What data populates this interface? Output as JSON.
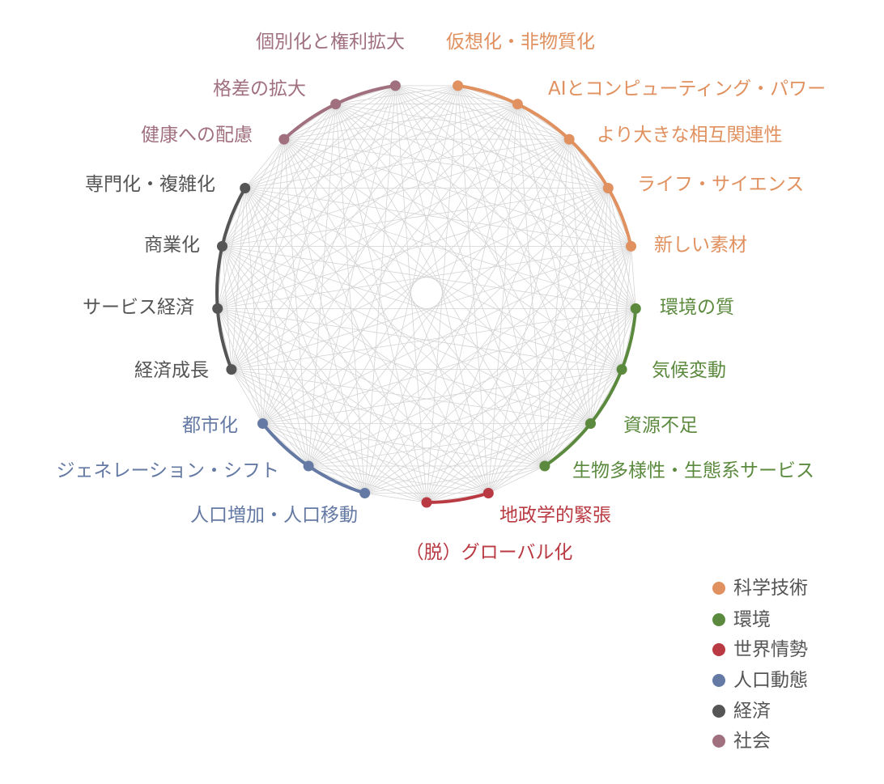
{
  "groups": [
    {
      "id": "tech",
      "label": "科学技術",
      "color": "#e0915f"
    },
    {
      "id": "env",
      "label": "環境",
      "color": "#5b8a3e"
    },
    {
      "id": "geo",
      "label": "世界情勢",
      "color": "#b93a42"
    },
    {
      "id": "pop",
      "label": "人口動態",
      "color": "#6479a3"
    },
    {
      "id": "econ",
      "label": "経済",
      "color": "#555555"
    },
    {
      "id": "soc",
      "label": "社会",
      "color": "#a0707f"
    }
  ],
  "nodes": [
    {
      "label": "仮想化・非物質化",
      "group": 0
    },
    {
      "label": "AIとコンピューティング・パワー",
      "group": 0
    },
    {
      "label": "より大きな相互関連性",
      "group": 0
    },
    {
      "label": "ライフ・サイエンス",
      "group": 0
    },
    {
      "label": "新しい素材",
      "group": 0
    },
    {
      "label": "環境の質",
      "group": 1
    },
    {
      "label": "気候変動",
      "group": 1
    },
    {
      "label": "資源不足",
      "group": 1
    },
    {
      "label": "生物多様性・生態系サービス",
      "group": 1
    },
    {
      "label": "地政学的緊張",
      "group": 2
    },
    {
      "label": "（脱）グローバル化",
      "group": 2
    },
    {
      "label": "人口増加・人口移動",
      "group": 3
    },
    {
      "label": "ジェネレーション・シフト",
      "group": 3
    },
    {
      "label": "都市化",
      "group": 3
    },
    {
      "label": "経済成長",
      "group": 4
    },
    {
      "label": "サービス経済",
      "group": 4
    },
    {
      "label": "商業化",
      "group": 4
    },
    {
      "label": "専門化・複雑化",
      "group": 4
    },
    {
      "label": "健康への配慮",
      "group": 5
    },
    {
      "label": "格差の拡大",
      "group": 5
    },
    {
      "label": "個別化と権利拡大",
      "group": 5
    }
  ],
  "edges": "all-pairs",
  "edge_color": "#d4d4d4"
}
